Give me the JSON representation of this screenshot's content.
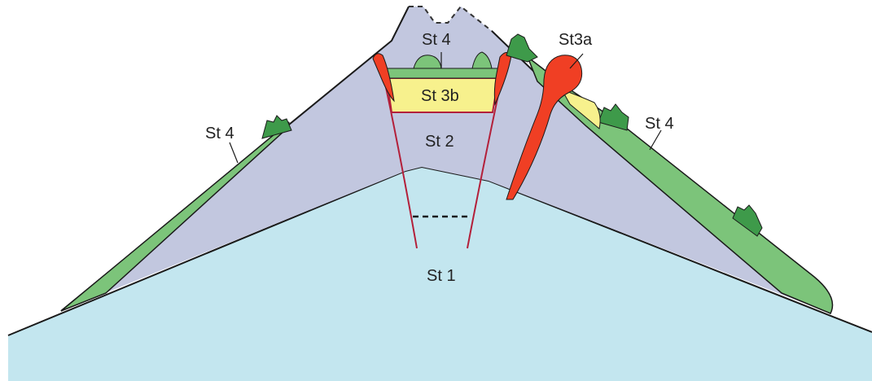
{
  "labels": {
    "st1": "St 1",
    "st2": "St 2",
    "st3a": "St3a",
    "st3b": "St 3b",
    "st4_top": "St 4",
    "st4_left": "St 4",
    "st4_right": "St 4"
  },
  "colors": {
    "st1": "#c3e6ef",
    "st2": "#c2c7df",
    "st3b": "#f7f18d",
    "st3a": "#f03f24",
    "st4": "#7cc47a",
    "st4_dark": "#3e9a4a",
    "outline": "#1a1a1a",
    "dike": "#b3203a"
  }
}
